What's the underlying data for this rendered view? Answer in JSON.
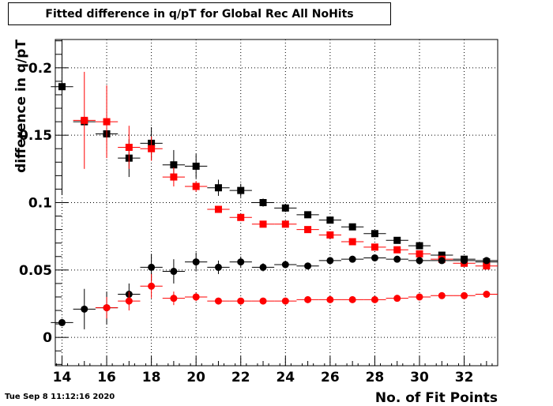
{
  "chart_data": {
    "type": "scatter",
    "title": "Fitted difference in q/pT for Global Rec All NoHits",
    "xlabel": "No. of Fit Points",
    "ylabel": "difference in q/pT",
    "xlim": [
      13.7,
      33.5
    ],
    "ylim": [
      -0.021,
      0.221
    ],
    "x_ticks": [
      14,
      16,
      18,
      20,
      22,
      24,
      26,
      28,
      30,
      32
    ],
    "x_tick_labels": [
      "14",
      "16",
      "18",
      "20",
      "22",
      "24",
      "26",
      "28",
      "30",
      "32"
    ],
    "y_ticks": [
      0,
      0.05,
      0.1,
      0.15,
      0.2
    ],
    "y_tick_labels": [
      "0",
      "0.05",
      "0.1",
      "0.15",
      "0.2"
    ],
    "grid": true,
    "x_error_half_width": 0.5,
    "series": [
      {
        "marker": "square",
        "color": "#000000",
        "points": [
          {
            "x": 14,
            "y": 0.186,
            "err": 0.08
          },
          {
            "x": 15,
            "y": 0.16,
            "err": 0.0
          },
          {
            "x": 16,
            "y": 0.151,
            "err": 0.0
          },
          {
            "x": 17,
            "y": 0.133,
            "err": 0.014
          },
          {
            "x": 18,
            "y": 0.144,
            "err": 0.012
          },
          {
            "x": 19,
            "y": 0.128,
            "err": 0.011
          },
          {
            "x": 20,
            "y": 0.127,
            "err": 0.009
          },
          {
            "x": 21,
            "y": 0.111,
            "err": 0.006
          },
          {
            "x": 22,
            "y": 0.109,
            "err": 0.005
          },
          {
            "x": 23,
            "y": 0.1,
            "err": 0.003
          },
          {
            "x": 24,
            "y": 0.096,
            "err": 0.003
          },
          {
            "x": 25,
            "y": 0.091,
            "err": 0.002
          },
          {
            "x": 26,
            "y": 0.087,
            "err": 0.002
          },
          {
            "x": 27,
            "y": 0.082,
            "err": 0.002
          },
          {
            "x": 28,
            "y": 0.077,
            "err": 0.002
          },
          {
            "x": 29,
            "y": 0.072,
            "err": 0.002
          },
          {
            "x": 30,
            "y": 0.068,
            "err": 0.002
          },
          {
            "x": 31,
            "y": 0.061,
            "err": 0.002
          },
          {
            "x": 32,
            "y": 0.058,
            "err": 0.002
          },
          {
            "x": 33,
            "y": 0.056,
            "err": 0.002
          }
        ]
      },
      {
        "marker": "square",
        "color": "#ff0000",
        "points": [
          {
            "x": 15,
            "y": 0.161,
            "err": 0.036
          },
          {
            "x": 16,
            "y": 0.16,
            "err": 0.027
          },
          {
            "x": 17,
            "y": 0.141,
            "err": 0.016
          },
          {
            "x": 18,
            "y": 0.14,
            "err": 0.009
          },
          {
            "x": 19,
            "y": 0.119,
            "err": 0.007
          },
          {
            "x": 20,
            "y": 0.112,
            "err": 0.004
          },
          {
            "x": 21,
            "y": 0.095,
            "err": 0.002
          },
          {
            "x": 22,
            "y": 0.089,
            "err": 0.002
          },
          {
            "x": 23,
            "y": 0.084,
            "err": 0.002
          },
          {
            "x": 24,
            "y": 0.084,
            "err": 0.002
          },
          {
            "x": 25,
            "y": 0.08,
            "err": 0.002
          },
          {
            "x": 26,
            "y": 0.076,
            "err": 0.002
          },
          {
            "x": 27,
            "y": 0.071,
            "err": 0.002
          },
          {
            "x": 28,
            "y": 0.067,
            "err": 0.002
          },
          {
            "x": 29,
            "y": 0.065,
            "err": 0.002
          },
          {
            "x": 30,
            "y": 0.062,
            "err": 0.002
          },
          {
            "x": 31,
            "y": 0.058,
            "err": 0.002
          },
          {
            "x": 32,
            "y": 0.055,
            "err": 0.002
          },
          {
            "x": 33,
            "y": 0.053,
            "err": 0.002
          }
        ]
      },
      {
        "marker": "circle",
        "color": "#000000",
        "points": [
          {
            "x": 14,
            "y": 0.011,
            "err": 0.0
          },
          {
            "x": 15,
            "y": 0.021,
            "err": 0.015
          },
          {
            "x": 16,
            "y": 0.022,
            "err": 0.012
          },
          {
            "x": 17,
            "y": 0.032,
            "err": 0.008
          },
          {
            "x": 18,
            "y": 0.052,
            "err": 0.01
          },
          {
            "x": 19,
            "y": 0.049,
            "err": 0.009
          },
          {
            "x": 20,
            "y": 0.056,
            "err": 0.007
          },
          {
            "x": 21,
            "y": 0.052,
            "err": 0.005
          },
          {
            "x": 22,
            "y": 0.056,
            "err": 0.004
          },
          {
            "x": 23,
            "y": 0.052,
            "err": 0.003
          },
          {
            "x": 24,
            "y": 0.054,
            "err": 0.002
          },
          {
            "x": 25,
            "y": 0.053,
            "err": 0.002
          },
          {
            "x": 26,
            "y": 0.057,
            "err": 0.002
          },
          {
            "x": 27,
            "y": 0.058,
            "err": 0.002
          },
          {
            "x": 28,
            "y": 0.059,
            "err": 0.002
          },
          {
            "x": 29,
            "y": 0.058,
            "err": 0.002
          },
          {
            "x": 30,
            "y": 0.057,
            "err": 0.002
          },
          {
            "x": 31,
            "y": 0.057,
            "err": 0.002
          },
          {
            "x": 32,
            "y": 0.057,
            "err": 0.002
          },
          {
            "x": 33,
            "y": 0.057,
            "err": 0.002
          }
        ]
      },
      {
        "marker": "circle",
        "color": "#ff0000",
        "points": [
          {
            "x": 16,
            "y": 0.022,
            "err": 0.008
          },
          {
            "x": 17,
            "y": 0.027,
            "err": 0.007
          },
          {
            "x": 18,
            "y": 0.038,
            "err": 0.009
          },
          {
            "x": 19,
            "y": 0.029,
            "err": 0.005
          },
          {
            "x": 20,
            "y": 0.03,
            "err": 0.003
          },
          {
            "x": 21,
            "y": 0.027,
            "err": 0.002
          },
          {
            "x": 22,
            "y": 0.027,
            "err": 0.002
          },
          {
            "x": 23,
            "y": 0.027,
            "err": 0.002
          },
          {
            "x": 24,
            "y": 0.027,
            "err": 0.002
          },
          {
            "x": 25,
            "y": 0.028,
            "err": 0.002
          },
          {
            "x": 26,
            "y": 0.028,
            "err": 0.002
          },
          {
            "x": 27,
            "y": 0.028,
            "err": 0.002
          },
          {
            "x": 28,
            "y": 0.028,
            "err": 0.002
          },
          {
            "x": 29,
            "y": 0.029,
            "err": 0.002
          },
          {
            "x": 30,
            "y": 0.03,
            "err": 0.002
          },
          {
            "x": 31,
            "y": 0.031,
            "err": 0.002
          },
          {
            "x": 32,
            "y": 0.031,
            "err": 0.002
          },
          {
            "x": 33,
            "y": 0.032,
            "err": 0.002
          }
        ]
      }
    ]
  },
  "timestamp": "Tue Sep  8 11:12:16 2020"
}
